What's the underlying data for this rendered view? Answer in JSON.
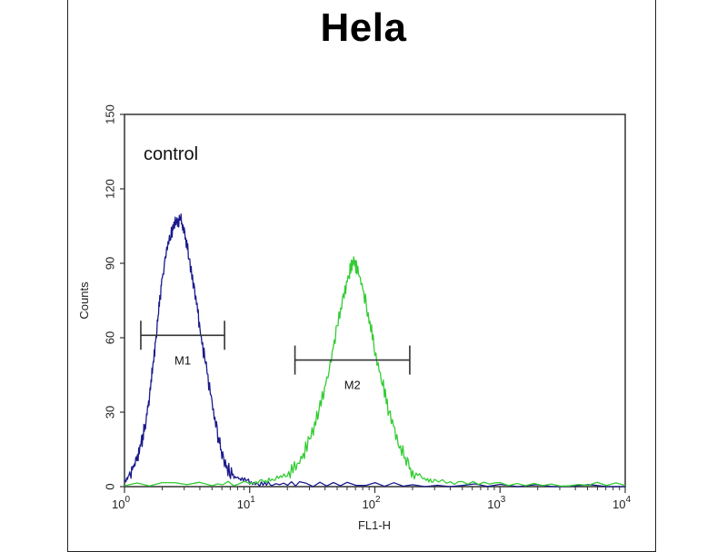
{
  "chart_data": {
    "type": "line",
    "title": "Hela",
    "xlabel": "FL1-H",
    "ylabel": "Counts",
    "xscale": "log",
    "xlim": [
      1,
      10000
    ],
    "ylim": [
      0,
      150
    ],
    "x_ticks": [
      {
        "base": "10",
        "exp": "0",
        "value": 1
      },
      {
        "base": "10",
        "exp": "1",
        "value": 10
      },
      {
        "base": "10",
        "exp": "2",
        "value": 100
      },
      {
        "base": "10",
        "exp": "3",
        "value": 1000
      },
      {
        "base": "10",
        "exp": "4",
        "value": 10000
      }
    ],
    "y_ticks": [
      "0",
      "30",
      "60",
      "90",
      "120",
      "150"
    ],
    "annotation": "control",
    "grid": false,
    "series": [
      {
        "color": "#1a1a8c",
        "points": [
          [
            1.0,
            2
          ],
          [
            1.1,
            5
          ],
          [
            1.2,
            9
          ],
          [
            1.3,
            14
          ],
          [
            1.4,
            20
          ],
          [
            1.5,
            28
          ],
          [
            1.6,
            38
          ],
          [
            1.7,
            50
          ],
          [
            1.8,
            62
          ],
          [
            1.9,
            74
          ],
          [
            2.0,
            84
          ],
          [
            2.2,
            96
          ],
          [
            2.4,
            103
          ],
          [
            2.6,
            107
          ],
          [
            2.8,
            108
          ],
          [
            3.0,
            103
          ],
          [
            3.2,
            95
          ],
          [
            3.5,
            84
          ],
          [
            3.8,
            72
          ],
          [
            4.1,
            60
          ],
          [
            4.5,
            48
          ],
          [
            5.0,
            33
          ],
          [
            5.5,
            22
          ],
          [
            6.0,
            13
          ],
          [
            6.7,
            7
          ],
          [
            7.5,
            4
          ],
          [
            8.5,
            3
          ],
          [
            10,
            2
          ],
          [
            12,
            1
          ],
          [
            15,
            1
          ],
          [
            25,
            1
          ],
          [
            60,
            1
          ],
          [
            200,
            0.5
          ],
          [
            1000,
            0.5
          ],
          [
            10000,
            0
          ]
        ]
      },
      {
        "color": "#33cc33",
        "points": [
          [
            1.0,
            1
          ],
          [
            5,
            1
          ],
          [
            10,
            1.5
          ],
          [
            13,
            2
          ],
          [
            16,
            3
          ],
          [
            20,
            5
          ],
          [
            24,
            9
          ],
          [
            28,
            15
          ],
          [
            33,
            24
          ],
          [
            38,
            36
          ],
          [
            44,
            50
          ],
          [
            50,
            64
          ],
          [
            56,
            76
          ],
          [
            62,
            86
          ],
          [
            67,
            91
          ],
          [
            72,
            88
          ],
          [
            80,
            80
          ],
          [
            90,
            68
          ],
          [
            100,
            55
          ],
          [
            115,
            42
          ],
          [
            130,
            30
          ],
          [
            150,
            20
          ],
          [
            175,
            11
          ],
          [
            200,
            6
          ],
          [
            250,
            3
          ],
          [
            300,
            2
          ],
          [
            500,
            1.5
          ],
          [
            1000,
            1
          ],
          [
            3000,
            1
          ],
          [
            10000,
            0.5
          ]
        ]
      }
    ],
    "gates": [
      {
        "label": "M1",
        "start": 1.35,
        "end": 6.3,
        "y": 61
      },
      {
        "label": "M2",
        "start": 23,
        "end": 190,
        "y": 51
      }
    ]
  }
}
